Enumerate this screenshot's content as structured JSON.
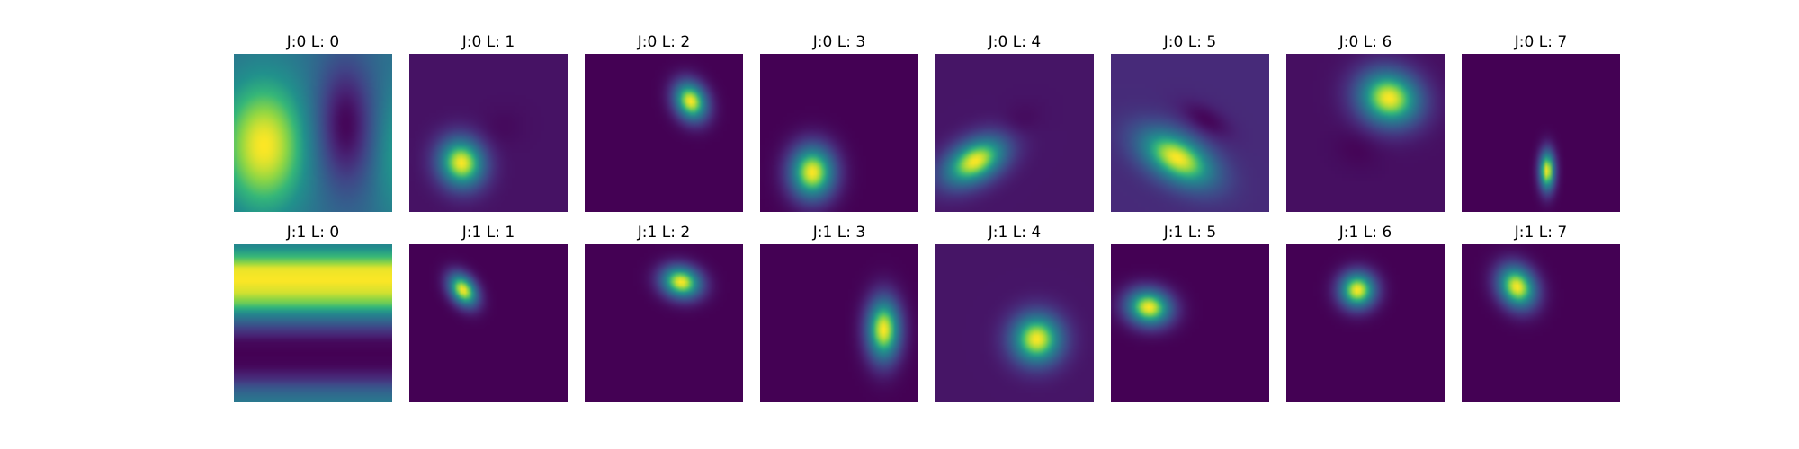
{
  "chart_data": {
    "type": "heatmap",
    "colormap": "viridis",
    "grid": false,
    "axes_visible": false,
    "rows": 2,
    "cols": 8,
    "panels": [
      {
        "title": "J:0 L: 0",
        "background": 0.45,
        "blobs": [
          {
            "cx": 0.19,
            "cy": 0.58,
            "sx": 0.2,
            "sy": 0.3,
            "rot": 0,
            "amp": 0.55
          },
          {
            "cx": 0.7,
            "cy": 0.45,
            "sx": 0.13,
            "sy": 0.28,
            "rot": 0,
            "amp": -0.45
          },
          {
            "cx": 1.02,
            "cy": 0.62,
            "sx": 0.1,
            "sy": 0.3,
            "rot": 0,
            "amp": 0.22
          }
        ]
      },
      {
        "title": "J:0 L: 1",
        "background": 0.06,
        "blobs": [
          {
            "cx": 0.33,
            "cy": 0.69,
            "sx": 0.1,
            "sy": 0.11,
            "rot": -20,
            "amp": 0.94
          },
          {
            "cx": 0.58,
            "cy": 0.47,
            "sx": 0.1,
            "sy": 0.08,
            "rot": -20,
            "amp": -0.03
          }
        ]
      },
      {
        "title": "J:0 L: 2",
        "background": 0.0,
        "blobs": [
          {
            "cx": 0.67,
            "cy": 0.3,
            "sx": 0.07,
            "sy": 0.09,
            "rot": -25,
            "amp": 1.0
          }
        ]
      },
      {
        "title": "J:0 L: 3",
        "background": 0.0,
        "blobs": [
          {
            "cx": 0.33,
            "cy": 0.75,
            "sx": 0.1,
            "sy": 0.12,
            "rot": 0,
            "amp": 1.0
          }
        ]
      },
      {
        "title": "J:0 L: 4",
        "background": 0.07,
        "blobs": [
          {
            "cx": 0.25,
            "cy": 0.68,
            "sx": 0.15,
            "sy": 0.09,
            "rot": -30,
            "amp": 0.93
          },
          {
            "cx": 0.52,
            "cy": 0.44,
            "sx": 0.1,
            "sy": 0.07,
            "rot": -30,
            "amp": -0.05
          }
        ]
      },
      {
        "title": "J:0 L: 5",
        "background": 0.15,
        "blobs": [
          {
            "cx": 0.42,
            "cy": 0.66,
            "sx": 0.18,
            "sy": 0.1,
            "rot": 30,
            "amp": 0.85
          },
          {
            "cx": 0.6,
            "cy": 0.42,
            "sx": 0.12,
            "sy": 0.06,
            "rot": 30,
            "amp": -0.14
          }
        ]
      },
      {
        "title": "J:0 L: 6",
        "background": 0.05,
        "blobs": [
          {
            "cx": 0.65,
            "cy": 0.28,
            "sx": 0.14,
            "sy": 0.12,
            "rot": 20,
            "amp": 0.95
          },
          {
            "cx": 0.45,
            "cy": 0.6,
            "sx": 0.1,
            "sy": 0.08,
            "rot": 20,
            "amp": -0.04
          }
        ]
      },
      {
        "title": "J:0 L: 7",
        "background": 0.0,
        "blobs": [
          {
            "cx": 0.54,
            "cy": 0.74,
            "sx": 0.035,
            "sy": 0.09,
            "rot": 0,
            "amp": 1.0
          }
        ]
      },
      {
        "title": "J:1 L: 0",
        "background": 0.0,
        "stripes": [
          0.55,
          0.75,
          0.98,
          1.0,
          0.95,
          0.8,
          0.5,
          0.22,
          0.03,
          0.0,
          0.02,
          0.15,
          0.38,
          0.52
        ]
      },
      {
        "title": "J:1 L: 1",
        "background": 0.0,
        "blobs": [
          {
            "cx": 0.34,
            "cy": 0.29,
            "sx": 0.055,
            "sy": 0.08,
            "rot": -35,
            "amp": 1.0
          }
        ]
      },
      {
        "title": "J:1 L: 2",
        "background": 0.0,
        "blobs": [
          {
            "cx": 0.61,
            "cy": 0.24,
            "sx": 0.09,
            "sy": 0.07,
            "rot": 15,
            "amp": 1.0
          }
        ]
      },
      {
        "title": "J:1 L: 3",
        "background": 0.0,
        "blobs": [
          {
            "cx": 0.78,
            "cy": 0.54,
            "sx": 0.075,
            "sy": 0.14,
            "rot": 0,
            "amp": 1.0
          }
        ]
      },
      {
        "title": "J:1 L: 4",
        "background": 0.07,
        "blobs": [
          {
            "cx": 0.64,
            "cy": 0.6,
            "sx": 0.11,
            "sy": 0.11,
            "rot": -20,
            "amp": 0.93
          }
        ]
      },
      {
        "title": "J:1 L: 5",
        "background": 0.0,
        "blobs": [
          {
            "cx": 0.24,
            "cy": 0.4,
            "sx": 0.1,
            "sy": 0.08,
            "rot": 10,
            "amp": 1.0
          }
        ]
      },
      {
        "title": "J:1 L: 6",
        "background": 0.0,
        "blobs": [
          {
            "cx": 0.45,
            "cy": 0.29,
            "sx": 0.08,
            "sy": 0.08,
            "rot": 0,
            "amp": 1.0
          }
        ]
      },
      {
        "title": "J:1 L: 7",
        "background": 0.0,
        "blobs": [
          {
            "cx": 0.35,
            "cy": 0.27,
            "sx": 0.08,
            "sy": 0.1,
            "rot": -30,
            "amp": 1.0
          }
        ]
      }
    ]
  }
}
